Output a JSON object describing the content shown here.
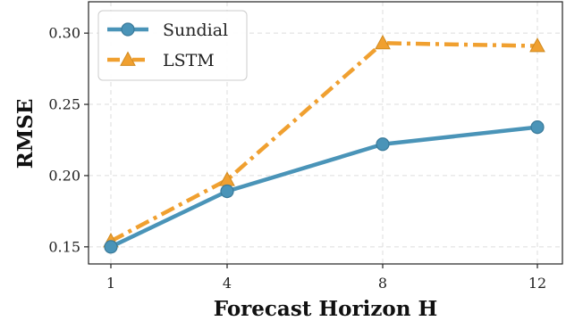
{
  "chart_data": {
    "type": "line",
    "x": [
      1,
      4,
      8,
      12
    ],
    "xticks": [
      "1",
      "4",
      "8",
      "12"
    ],
    "xlabel": "Forecast Horizon H",
    "ylabel": "RMSE",
    "ylim": [
      0.138,
      0.322
    ],
    "yticks": [
      "0.15",
      "0.20",
      "0.25",
      "0.30"
    ],
    "ytick_values": [
      0.15,
      0.2,
      0.25,
      0.3
    ],
    "grid": true,
    "legend_position": "top-left",
    "series": [
      {
        "name": "Sundial",
        "values": [
          0.15,
          0.189,
          0.222,
          0.234
        ],
        "color": "#4a94b8",
        "marker": "circle",
        "line_style": "solid"
      },
      {
        "name": "LSTM",
        "values": [
          0.154,
          0.197,
          0.293,
          0.291
        ],
        "color": "#f0a030",
        "marker": "triangle",
        "line_style": "dashdot"
      }
    ]
  }
}
